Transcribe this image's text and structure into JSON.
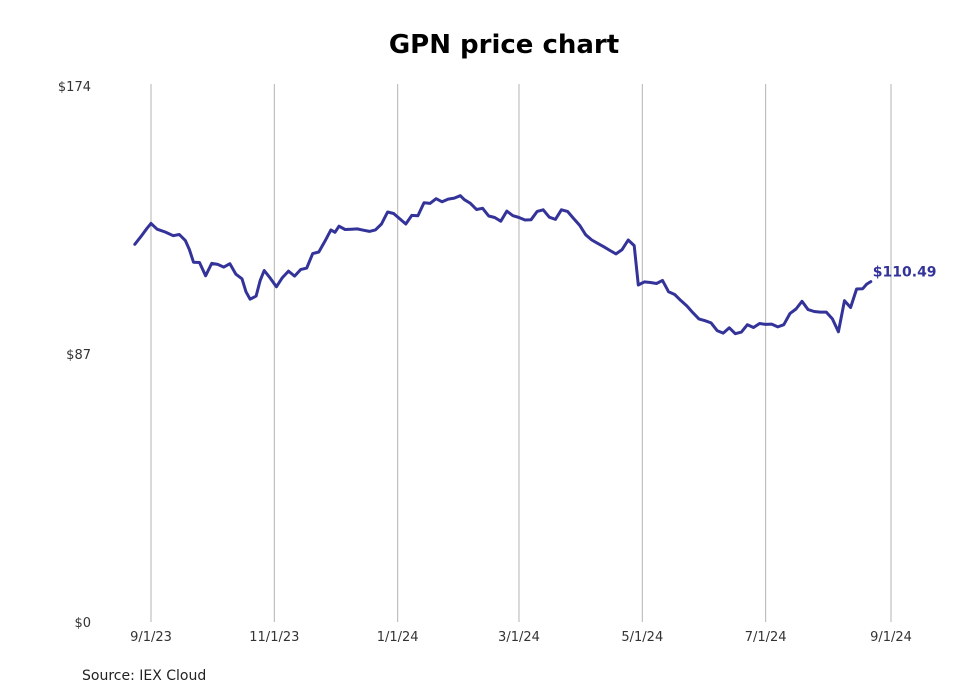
{
  "chart_data": {
    "type": "line",
    "title": "GPN price chart",
    "source": "Source: IEX Cloud",
    "line_color": "#333399",
    "ylim": [
      0,
      174
    ],
    "y_ticks": [
      {
        "value": 0,
        "label": "$0"
      },
      {
        "value": 87,
        "label": "$87"
      },
      {
        "value": 174,
        "label": "$174"
      }
    ],
    "x_ticks": [
      {
        "date": "2023-09-01",
        "label": "9/1/23"
      },
      {
        "date": "2023-11-01",
        "label": "11/1/23"
      },
      {
        "date": "2024-01-01",
        "label": "1/1/24"
      },
      {
        "date": "2024-03-01",
        "label": "3/1/24"
      },
      {
        "date": "2024-05-01",
        "label": "5/1/24"
      },
      {
        "date": "2024-07-01",
        "label": "7/1/24"
      },
      {
        "date": "2024-09-01",
        "label": "9/1/24"
      }
    ],
    "end_label": "$110.49",
    "series": [
      {
        "points": [
          [
            "2023-08-24",
            122.6
          ],
          [
            "2023-08-27",
            125.1
          ],
          [
            "2023-08-30",
            127.8
          ],
          [
            "2023-09-01",
            129.4
          ],
          [
            "2023-09-04",
            127.5
          ],
          [
            "2023-09-08",
            126.6
          ],
          [
            "2023-09-12",
            125.4
          ],
          [
            "2023-09-15",
            125.8
          ],
          [
            "2023-09-18",
            123.8
          ],
          [
            "2023-09-20",
            120.9
          ],
          [
            "2023-09-22",
            116.8
          ],
          [
            "2023-09-25",
            116.7
          ],
          [
            "2023-09-28",
            112.4
          ],
          [
            "2023-10-01",
            116.4
          ],
          [
            "2023-10-04",
            116.1
          ],
          [
            "2023-10-07",
            115.2
          ],
          [
            "2023-10-10",
            116.3
          ],
          [
            "2023-10-13",
            112.9
          ],
          [
            "2023-10-16",
            111.4
          ],
          [
            "2023-10-18",
            107.2
          ],
          [
            "2023-10-20",
            104.8
          ],
          [
            "2023-10-23",
            105.8
          ],
          [
            "2023-10-25",
            110.9
          ],
          [
            "2023-10-27",
            114.1
          ],
          [
            "2023-10-30",
            111.6
          ],
          [
            "2023-11-02",
            108.8
          ],
          [
            "2023-11-05",
            111.8
          ],
          [
            "2023-11-08",
            113.9
          ],
          [
            "2023-11-11",
            112.3
          ],
          [
            "2023-11-14",
            114.4
          ],
          [
            "2023-11-17",
            114.9
          ],
          [
            "2023-11-20",
            119.6
          ],
          [
            "2023-11-23",
            120.1
          ],
          [
            "2023-11-26",
            123.6
          ],
          [
            "2023-11-29",
            127.3
          ],
          [
            "2023-12-01",
            126.5
          ],
          [
            "2023-12-03",
            128.5
          ],
          [
            "2023-12-06",
            127.4
          ],
          [
            "2023-12-09",
            127.5
          ],
          [
            "2023-12-12",
            127.6
          ],
          [
            "2023-12-15",
            127.2
          ],
          [
            "2023-12-18",
            126.8
          ],
          [
            "2023-12-21",
            127.3
          ],
          [
            "2023-12-24",
            129.2
          ],
          [
            "2023-12-27",
            133.1
          ],
          [
            "2023-12-30",
            132.6
          ],
          [
            "2024-01-02",
            130.9
          ],
          [
            "2024-01-05",
            129.2
          ],
          [
            "2024-01-08",
            132.0
          ],
          [
            "2024-01-11",
            131.9
          ],
          [
            "2024-01-14",
            136.1
          ],
          [
            "2024-01-17",
            135.9
          ],
          [
            "2024-01-20",
            137.4
          ],
          [
            "2024-01-23",
            136.4
          ],
          [
            "2024-01-26",
            137.3
          ],
          [
            "2024-01-29",
            137.6
          ],
          [
            "2024-02-01",
            138.4
          ],
          [
            "2024-02-03",
            137.1
          ],
          [
            "2024-02-06",
            135.9
          ],
          [
            "2024-02-09",
            133.9
          ],
          [
            "2024-02-12",
            134.3
          ],
          [
            "2024-02-15",
            131.8
          ],
          [
            "2024-02-18",
            131.3
          ],
          [
            "2024-02-21",
            130.1
          ],
          [
            "2024-02-24",
            133.4
          ],
          [
            "2024-02-27",
            131.9
          ],
          [
            "2024-03-01",
            131.3
          ],
          [
            "2024-03-04",
            130.5
          ],
          [
            "2024-03-07",
            130.6
          ],
          [
            "2024-03-10",
            133.3
          ],
          [
            "2024-03-13",
            133.8
          ],
          [
            "2024-03-16",
            131.4
          ],
          [
            "2024-03-19",
            130.7
          ],
          [
            "2024-03-22",
            133.8
          ],
          [
            "2024-03-25",
            133.3
          ],
          [
            "2024-03-28",
            131.0
          ],
          [
            "2024-03-31",
            128.8
          ],
          [
            "2024-04-03",
            125.7
          ],
          [
            "2024-04-06",
            124.0
          ],
          [
            "2024-04-09",
            122.9
          ],
          [
            "2024-04-12",
            121.8
          ],
          [
            "2024-04-15",
            120.6
          ],
          [
            "2024-04-18",
            119.5
          ],
          [
            "2024-04-21",
            120.9
          ],
          [
            "2024-04-24",
            124.0
          ],
          [
            "2024-04-27",
            122.2
          ],
          [
            "2024-04-29",
            109.4
          ],
          [
            "2024-05-02",
            110.4
          ],
          [
            "2024-05-05",
            110.2
          ],
          [
            "2024-05-08",
            109.9
          ],
          [
            "2024-05-11",
            110.9
          ],
          [
            "2024-05-14",
            107.2
          ],
          [
            "2024-05-17",
            106.3
          ],
          [
            "2024-05-20",
            104.4
          ],
          [
            "2024-05-23",
            102.6
          ],
          [
            "2024-05-26",
            100.4
          ],
          [
            "2024-05-29",
            98.4
          ],
          [
            "2024-06-01",
            97.8
          ],
          [
            "2024-06-04",
            97.1
          ],
          [
            "2024-06-07",
            94.6
          ],
          [
            "2024-06-10",
            93.8
          ],
          [
            "2024-06-13",
            95.5
          ],
          [
            "2024-06-16",
            93.6
          ],
          [
            "2024-06-19",
            94.1
          ],
          [
            "2024-06-22",
            96.5
          ],
          [
            "2024-06-25",
            95.6
          ],
          [
            "2024-06-28",
            96.9
          ],
          [
            "2024-07-01",
            96.6
          ],
          [
            "2024-07-04",
            96.7
          ],
          [
            "2024-07-07",
            95.8
          ],
          [
            "2024-07-10",
            96.5
          ],
          [
            "2024-07-13",
            100.1
          ],
          [
            "2024-07-16",
            101.6
          ],
          [
            "2024-07-19",
            104.1
          ],
          [
            "2024-07-22",
            101.4
          ],
          [
            "2024-07-25",
            100.8
          ],
          [
            "2024-07-28",
            100.6
          ],
          [
            "2024-07-31",
            100.6
          ],
          [
            "2024-08-03",
            98.4
          ],
          [
            "2024-08-06",
            94.2
          ],
          [
            "2024-08-09",
            104.3
          ],
          [
            "2024-08-12",
            102.1
          ],
          [
            "2024-08-15",
            108.1
          ],
          [
            "2024-08-18",
            108.2
          ],
          [
            "2024-08-20",
            109.7
          ],
          [
            "2024-08-22",
            110.49
          ]
        ]
      }
    ]
  }
}
